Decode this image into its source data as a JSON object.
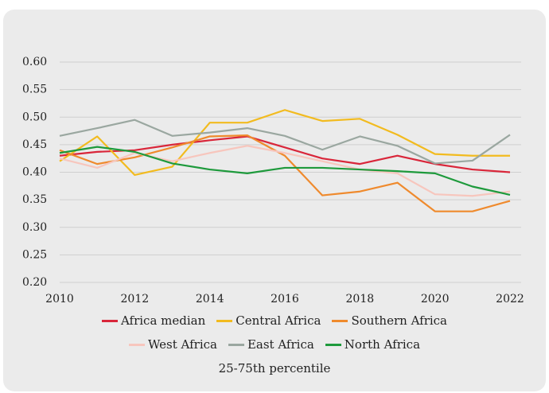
{
  "chart_data": {
    "type": "line",
    "x": [
      2010,
      2011,
      2012,
      2013,
      2014,
      2015,
      2016,
      2017,
      2018,
      2019,
      2020,
      2021,
      2022
    ],
    "xlim": [
      2010,
      2022
    ],
    "xticks": [
      2010,
      2012,
      2014,
      2016,
      2018,
      2020,
      2022
    ],
    "ylim": [
      0.2,
      0.6
    ],
    "yticks": [
      {
        "value": 0.2,
        "label": "0.20"
      },
      0.25,
      {
        "value": 0.3,
        "label": "0.30"
      },
      0.35,
      {
        "value": 0.4,
        "label": "0.40"
      },
      0.45,
      {
        "value": 0.5,
        "label": "0.50"
      },
      0.55,
      {
        "value": 0.6,
        "label": "0.60"
      }
    ],
    "grid": true,
    "series": [
      {
        "name": "Africa median",
        "color": "#d9263a",
        "values": [
          0.43,
          0.437,
          0.44,
          0.45,
          0.458,
          0.465,
          0.445,
          0.425,
          0.415,
          0.43,
          0.415,
          0.405,
          0.4
        ]
      },
      {
        "name": "Central Africa",
        "color": "#f2bb1f",
        "values": [
          0.42,
          0.465,
          0.395,
          0.41,
          0.49,
          0.49,
          0.513,
          0.493,
          0.497,
          0.468,
          0.433,
          0.43,
          0.43
        ]
      },
      {
        "name": "Southern Africa",
        "color": "#ef8a2d",
        "values": [
          0.44,
          0.415,
          0.427,
          0.445,
          0.465,
          0.467,
          0.43,
          0.358,
          0.365,
          0.381,
          0.329,
          0.329,
          0.348
        ]
      },
      {
        "name": "West Africa",
        "color": "#f7c6bd",
        "values": [
          0.425,
          0.408,
          0.435,
          0.42,
          0.435,
          0.448,
          0.435,
          0.42,
          0.405,
          0.398,
          0.36,
          0.357,
          0.365
        ]
      },
      {
        "name": "East Africa",
        "color": "#9aa7a0",
        "values": [
          0.466,
          0.48,
          0.495,
          0.466,
          0.472,
          0.48,
          0.466,
          0.441,
          0.465,
          0.448,
          0.416,
          0.421,
          0.468
        ]
      },
      {
        "name": "North Africa",
        "color": "#1e9a3c",
        "values": [
          0.435,
          0.446,
          0.437,
          0.416,
          0.405,
          0.398,
          0.408,
          0.408,
          0.405,
          0.402,
          0.398,
          0.374,
          0.359
        ]
      }
    ],
    "legend_note": "25-75th percentile"
  }
}
